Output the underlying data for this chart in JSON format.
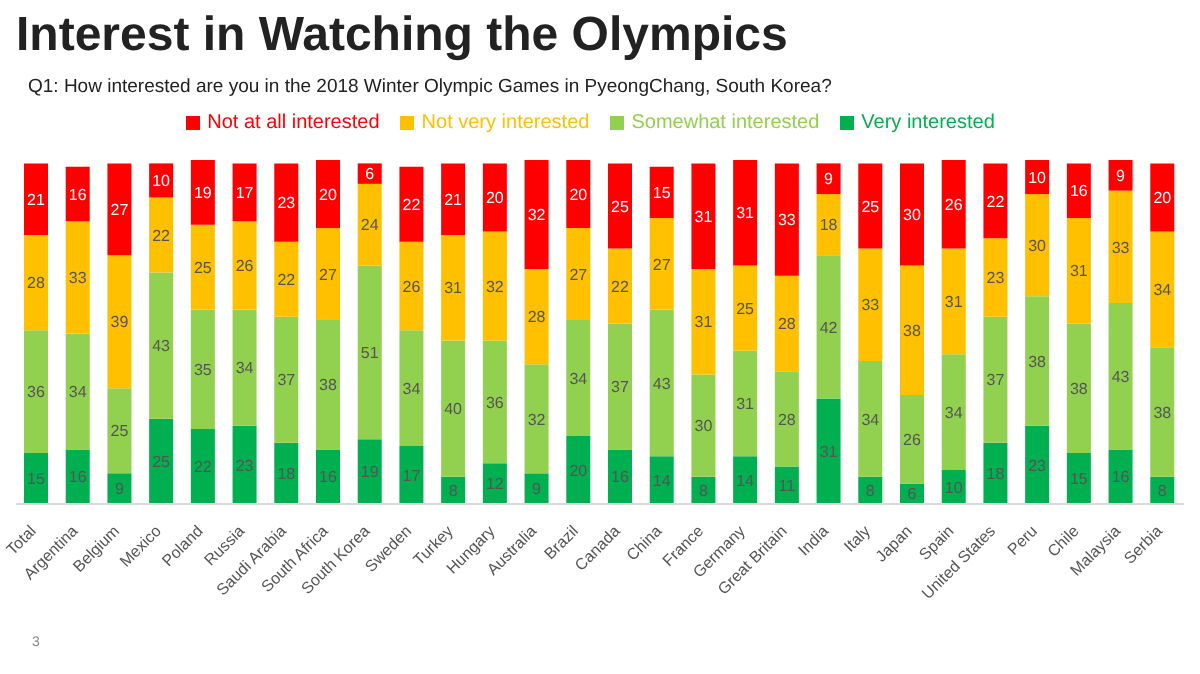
{
  "chart_data": {
    "type": "bar",
    "title": "Interest in Watching the Olympics",
    "subtitle": "Q1: How interested are you in the 2018 Winter Olympic Games in PyeongChang, South Korea?",
    "stacked": true,
    "data_labels": true,
    "legend": "top",
    "annotations": [
      "3"
    ],
    "categories": [
      "Total",
      "Argentina",
      "Belgium",
      "Mexico",
      "Poland",
      "Russia",
      "Saudi Arabia",
      "South Africa",
      "South Korea",
      "Sweden",
      "Turkey",
      "Hungary",
      "Australia",
      "Brazil",
      "Canada",
      "China",
      "France",
      "Germany",
      "Great Britain",
      "India",
      "Italy",
      "Japan",
      "Spain",
      "United States",
      "Peru",
      "Chile",
      "Malaysia",
      "Serbia"
    ],
    "series": [
      {
        "name": "Very interested",
        "color": "#00b050",
        "values": [
          15,
          16,
          9,
          25,
          22,
          23,
          18,
          16,
          19,
          17,
          8,
          12,
          9,
          20,
          16,
          14,
          8,
          14,
          11,
          31,
          8,
          6,
          10,
          18,
          23,
          15,
          16,
          8
        ]
      },
      {
        "name": "Somewhat interested",
        "color": "#92d050",
        "values": [
          36,
          34,
          25,
          43,
          35,
          34,
          37,
          38,
          51,
          34,
          40,
          36,
          32,
          34,
          37,
          43,
          30,
          31,
          28,
          42,
          34,
          26,
          34,
          37,
          38,
          38,
          43,
          38
        ]
      },
      {
        "name": "Not very interested",
        "color": "#ffc000",
        "values": [
          28,
          33,
          39,
          22,
          25,
          26,
          22,
          27,
          24,
          26,
          31,
          32,
          28,
          27,
          22,
          27,
          31,
          25,
          28,
          18,
          33,
          38,
          31,
          23,
          30,
          31,
          33,
          34
        ]
      },
      {
        "name": "Not at all interested",
        "color": "#ff0000",
        "values": [
          21,
          16,
          27,
          10,
          19,
          17,
          23,
          20,
          6,
          22,
          21,
          20,
          32,
          20,
          25,
          15,
          31,
          31,
          33,
          9,
          25,
          30,
          26,
          22,
          10,
          16,
          9,
          20
        ]
      }
    ]
  }
}
